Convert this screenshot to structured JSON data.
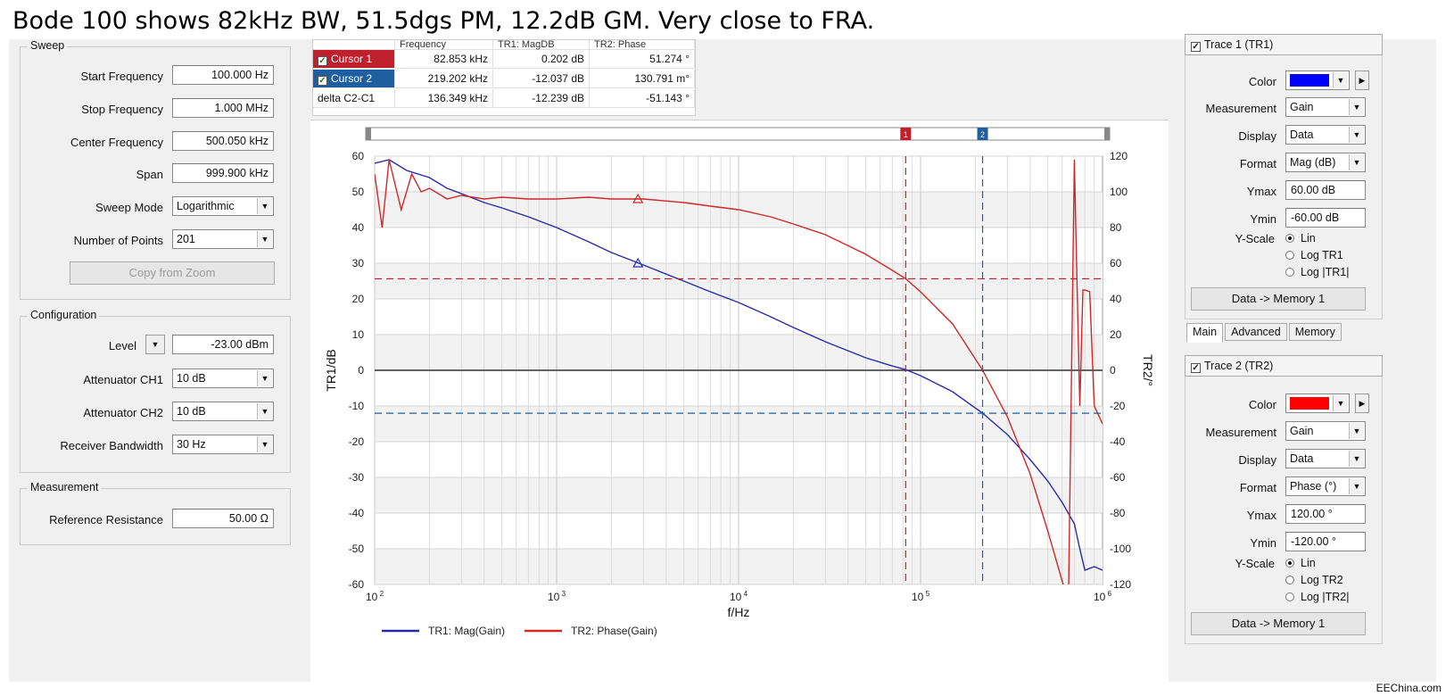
{
  "caption": "Bode 100 shows 82kHz BW, 51.5dgs PM, 12.2dB GM. Very close to FRA.",
  "watermark": "EEChina.com",
  "sweep": {
    "title": "Sweep",
    "start_label": "Start Frequency",
    "start_value": "100.000 Hz",
    "stop_label": "Stop Frequency",
    "stop_value": "1.000 MHz",
    "center_label": "Center Frequency",
    "center_value": "500.050 kHz",
    "span_label": "Span",
    "span_value": "999.900 kHz",
    "mode_label": "Sweep Mode",
    "mode_value": "Logarithmic",
    "points_label": "Number of Points",
    "points_value": "201",
    "copy_button": "Copy from Zoom"
  },
  "configuration": {
    "title": "Configuration",
    "level_label": "Level",
    "level_value": "-23.00 dBm",
    "att1_label": "Attenuator CH1",
    "att1_value": "10 dB",
    "att2_label": "Attenuator CH2",
    "att2_value": "10 dB",
    "rbw_label": "Receiver Bandwidth",
    "rbw_value": "30 Hz"
  },
  "measurement": {
    "title": "Measurement",
    "ref_label": "Reference Resistance",
    "ref_value": "50.00 Ω"
  },
  "cursor_table": {
    "headers": [
      "Frequency",
      "TR1: MagDB",
      "TR2: Phase"
    ],
    "rows": [
      {
        "name": "Cursor 1",
        "freq": "82.853 kHz",
        "mag": "0.202 dB",
        "phase": "51.274 °",
        "color": "#c0202c"
      },
      {
        "name": "Cursor 2",
        "freq": "219.202 kHz",
        "mag": "-12.037 dB",
        "phase": "130.791 m°",
        "color": "#1f5f9f"
      },
      {
        "name": "delta C2-C1",
        "freq": "136.349 kHz",
        "mag": "-12.239 dB",
        "phase": "-51.143 °"
      }
    ]
  },
  "chart_data": {
    "type": "line",
    "xlabel": "f/Hz",
    "ylabel_left": "TR1/dB",
    "ylabel_right": "TR2/°",
    "x_scale": "log",
    "xlim": [
      100,
      1000000
    ],
    "ylim_left": [
      -60,
      60
    ],
    "ylim_right": [
      -120,
      120
    ],
    "left_ticks": [
      "60",
      "50",
      "40",
      "30",
      "20",
      "10",
      "0",
      "-10",
      "-20",
      "-30",
      "-40",
      "-50",
      "-60"
    ],
    "right_ticks": [
      "120",
      "100",
      "80",
      "60",
      "40",
      "20",
      "0",
      "-20",
      "-40",
      "-60",
      "-80",
      "-100",
      "-120"
    ],
    "x_ticks": [
      {
        "base": "10",
        "exp": "2"
      },
      {
        "base": "10",
        "exp": "3"
      },
      {
        "base": "10",
        "exp": "4"
      },
      {
        "base": "10",
        "exp": "5"
      },
      {
        "base": "10",
        "exp": "6"
      }
    ],
    "grid": true,
    "legend_position": "bottom",
    "cursors": [
      {
        "label": "1",
        "freq": 82853,
        "mag_db": 0.202,
        "phase_deg": 51.274,
        "color": "#c0202c"
      },
      {
        "label": "2",
        "freq": 219202,
        "mag_db": -12.037,
        "phase_deg": 0.131,
        "color": "#1f5f9f"
      }
    ],
    "series": [
      {
        "name": "TR1: Mag(Gain)",
        "axis": "left",
        "color": "#2a2aa8",
        "x": [
          100,
          120,
          150,
          200,
          250,
          300,
          400,
          500,
          700,
          1000,
          1500,
          2000,
          3000,
          5000,
          7000,
          10000,
          15000,
          20000,
          30000,
          50000,
          70000,
          82853,
          100000,
          150000,
          219202,
          300000,
          400000,
          500000,
          600000,
          700000,
          750000,
          800000,
          900000,
          1000000
        ],
        "y": [
          58,
          59,
          56,
          54,
          51,
          49.5,
          47,
          45.5,
          43,
          40,
          36,
          33,
          29.5,
          25,
          22,
          19,
          15,
          12,
          8,
          3.5,
          1.2,
          0.2,
          -1.5,
          -6,
          -12,
          -18,
          -25,
          -31,
          -37,
          -43,
          -50,
          -56,
          -55,
          -56
        ]
      },
      {
        "name": "TR2: Phase(Gain)",
        "axis": "right",
        "color": "#d02828",
        "x": [
          100,
          110,
          120,
          140,
          160,
          180,
          200,
          250,
          300,
          400,
          500,
          700,
          1000,
          1500,
          2000,
          3000,
          5000,
          7000,
          10000,
          15000,
          20000,
          30000,
          50000,
          70000,
          82853,
          100000,
          150000,
          219202,
          300000,
          400000,
          500000,
          600000,
          650000,
          700000,
          720000,
          750000,
          780000,
          800000,
          850000,
          900000,
          1000000
        ],
        "y": [
          110,
          80,
          118,
          90,
          110,
          100,
          102,
          96,
          98,
          96,
          97,
          96,
          96,
          97,
          96,
          96,
          94,
          92,
          90,
          86,
          82,
          76,
          65,
          56,
          51.3,
          44,
          26,
          0.1,
          -26,
          -58,
          -90,
          -118,
          -130,
          118,
          60,
          -20,
          45,
          45,
          44,
          -20,
          -30
        ]
      }
    ]
  },
  "trace1": {
    "header": "Trace 1 (TR1)",
    "color_label": "Color",
    "color_value": "#0000ff",
    "measurement_label": "Measurement",
    "measurement_value": "Gain",
    "display_label": "Display",
    "display_value": "Data",
    "format_label": "Format",
    "format_value": "Mag (dB)",
    "ymax_label": "Ymax",
    "ymax_value": "60.00 dB",
    "ymin_label": "Ymin",
    "ymin_value": "-60.00 dB",
    "yscale_label": "Y-Scale",
    "yscale_options": [
      "Lin",
      "Log TR1",
      "Log |TR1|"
    ],
    "memory_button": "Data -> Memory 1",
    "tabs": [
      "Main",
      "Advanced",
      "Memory"
    ]
  },
  "trace2": {
    "header": "Trace 2 (TR2)",
    "color_label": "Color",
    "color_value": "#ff0000",
    "measurement_label": "Measurement",
    "measurement_value": "Gain",
    "display_label": "Display",
    "display_value": "Data",
    "format_label": "Format",
    "format_value": "Phase (°)",
    "ymax_label": "Ymax",
    "ymax_value": "120.00 °",
    "ymin_label": "Ymin",
    "ymin_value": "-120.00 °",
    "yscale_label": "Y-Scale",
    "yscale_options": [
      "Lin",
      "Log TR2",
      "Log |TR2|"
    ],
    "memory_button": "Data -> Memory 1"
  }
}
